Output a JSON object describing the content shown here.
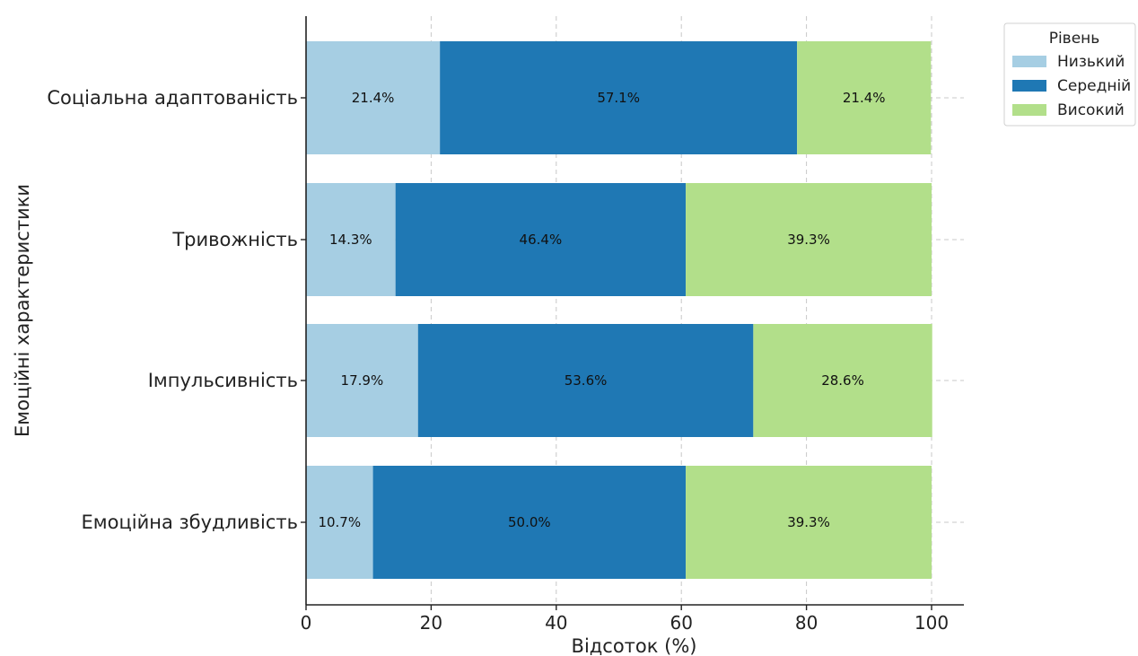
{
  "chart_data": {
    "type": "bar",
    "orientation": "horizontal",
    "stacked": true,
    "categories": [
      "Соціальна адаптованість",
      "Тривожність",
      "Імпульсивність",
      "Емоційна збудливість"
    ],
    "series": [
      {
        "name": "Низький",
        "color": "#a6cee3",
        "values": [
          21.4,
          14.3,
          17.9,
          10.7
        ],
        "labels": [
          "21.4%",
          "14.3%",
          "17.9%",
          "10.7%"
        ]
      },
      {
        "name": "Середній",
        "color": "#1f78b4",
        "values": [
          57.1,
          46.4,
          53.6,
          50.0
        ],
        "labels": [
          "57.1%",
          "46.4%",
          "53.6%",
          "50.0%"
        ]
      },
      {
        "name": "Високий",
        "color": "#b2df8a",
        "values": [
          21.4,
          39.3,
          28.6,
          39.3
        ],
        "labels": [
          "21.4%",
          "39.3%",
          "28.6%",
          "39.3%"
        ]
      }
    ],
    "xlabel": "Відсоток (%)",
    "ylabel": "Емоційні характеристики",
    "xlim": [
      0,
      105
    ],
    "xticks": [
      0,
      20,
      40,
      60,
      80,
      100
    ],
    "grid": true,
    "legend": {
      "title": "Рівень",
      "placement": "outside-top-right"
    }
  }
}
